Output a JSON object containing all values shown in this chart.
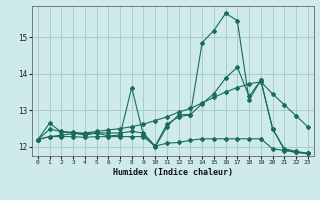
{
  "xlabel": "Humidex (Indice chaleur)",
  "bg_color": "#ceeaea",
  "grid_color": "#a8cccc",
  "line_color": "#1a6b5a",
  "xlim": [
    -0.5,
    23.5
  ],
  "ylim": [
    11.75,
    15.85
  ],
  "yticks": [
    12,
    13,
    14,
    15
  ],
  "xticks": [
    0,
    1,
    2,
    3,
    4,
    5,
    6,
    7,
    8,
    9,
    10,
    11,
    12,
    13,
    14,
    15,
    16,
    17,
    18,
    19,
    20,
    21,
    22,
    23
  ],
  "series1": [
    12.2,
    12.65,
    12.4,
    12.38,
    12.32,
    12.38,
    12.3,
    12.32,
    13.62,
    12.32,
    12.0,
    12.55,
    12.88,
    12.88,
    14.85,
    15.18,
    15.65,
    15.45,
    13.28,
    13.82,
    12.5,
    11.92,
    11.85,
    11.82
  ],
  "series2": [
    12.2,
    12.28,
    12.28,
    12.28,
    12.26,
    12.28,
    12.28,
    12.28,
    12.28,
    12.28,
    12.02,
    12.1,
    12.12,
    12.18,
    12.22,
    12.22,
    12.22,
    12.22,
    12.22,
    12.22,
    11.95,
    11.9,
    11.85,
    11.82
  ],
  "series3": [
    12.2,
    12.28,
    12.32,
    12.36,
    12.38,
    12.42,
    12.46,
    12.5,
    12.55,
    12.62,
    12.72,
    12.82,
    12.95,
    13.05,
    13.2,
    13.35,
    13.5,
    13.62,
    13.72,
    13.78,
    13.45,
    13.15,
    12.85,
    12.55
  ],
  "series4": [
    12.2,
    12.48,
    12.42,
    12.4,
    12.36,
    12.38,
    12.38,
    12.38,
    12.42,
    12.38,
    12.02,
    12.62,
    12.82,
    12.88,
    13.18,
    13.45,
    13.88,
    14.18,
    13.38,
    13.82,
    12.5,
    11.95,
    11.88,
    11.82
  ]
}
